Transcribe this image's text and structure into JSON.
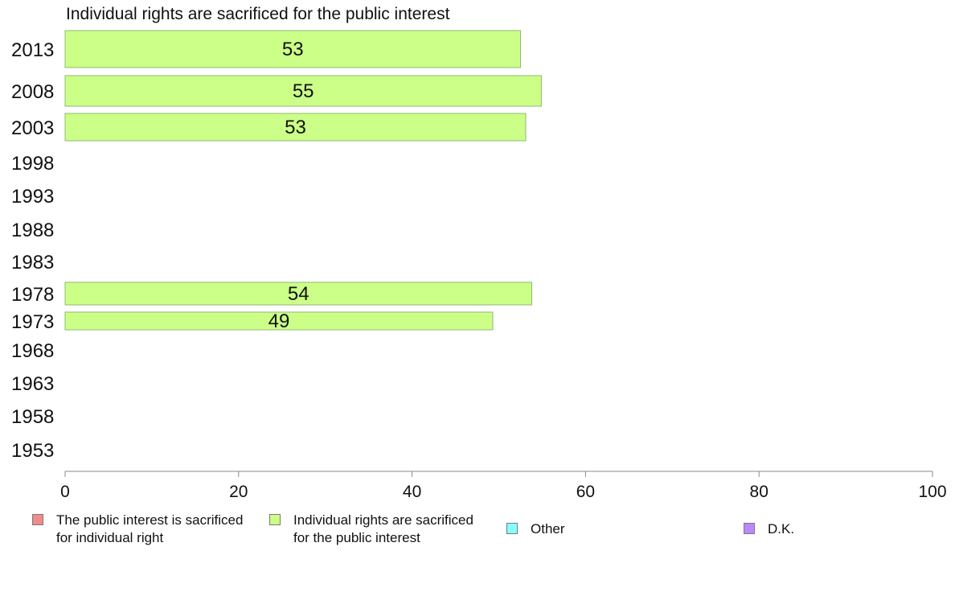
{
  "chart_data": {
    "type": "bar",
    "orientation": "horizontal",
    "title": "Individual rights are sacrificed for the public interest",
    "categories": [
      "2013",
      "2008",
      "2003",
      "1998",
      "1993",
      "1988",
      "1983",
      "1978",
      "1973",
      "1968",
      "1963",
      "1958",
      "1953"
    ],
    "series": [
      {
        "name": "Individual rights are sacrificed for the public interest",
        "color": "#ccff88",
        "values": [
          53,
          55,
          53,
          null,
          null,
          null,
          null,
          54,
          49,
          null,
          null,
          null,
          null
        ],
        "display_values": [
          52.5,
          54.9,
          53.1,
          null,
          null,
          null,
          null,
          53.8,
          49.3,
          null,
          null,
          null,
          null
        ]
      }
    ],
    "xlim": [
      0,
      100
    ],
    "x_ticks": [
      "0",
      "20",
      "40",
      "60",
      "80",
      "100"
    ],
    "legend_position": "bottom",
    "grid": false
  },
  "legend": [
    {
      "lines": [
        "The public interest is sacrificed",
        "for individual right"
      ],
      "color": "#f28b8b"
    },
    {
      "lines": [
        "Individual rights are sacrificed",
        "for the public interest"
      ],
      "color": "#ccff88"
    },
    {
      "lines": [
        "Other"
      ],
      "color": "#88ffff"
    },
    {
      "lines": [
        "D.K."
      ],
      "color": "#bb88ff"
    }
  ]
}
